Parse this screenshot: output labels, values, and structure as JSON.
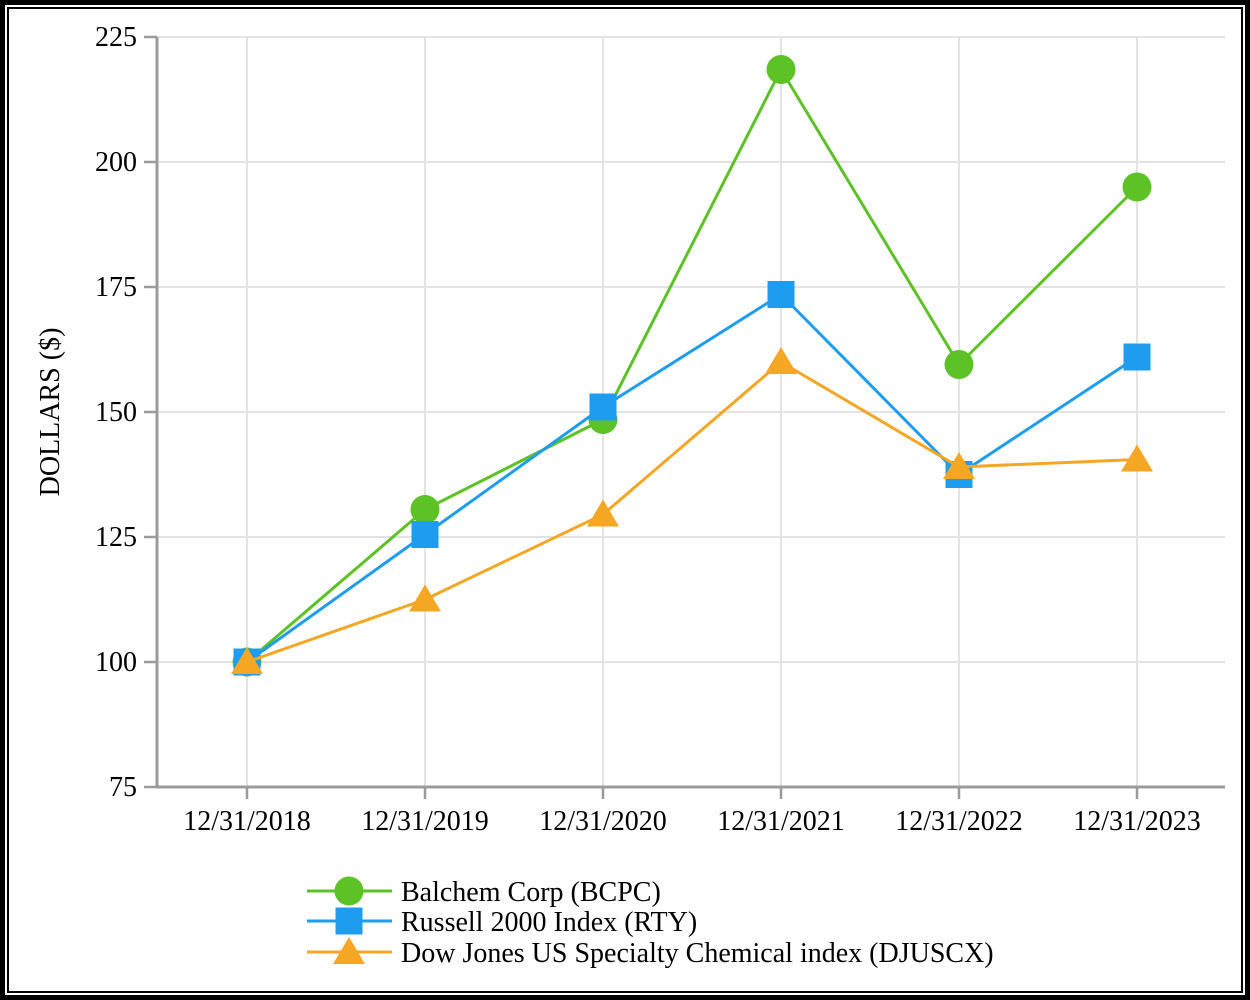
{
  "chart_data": {
    "type": "line",
    "title": "",
    "xlabel": "",
    "ylabel": "DOLLARS ($)",
    "ylim": [
      75,
      225
    ],
    "y_ticks": [
      75,
      100,
      125,
      150,
      175,
      200,
      225
    ],
    "categories": [
      "12/31/2018",
      "12/31/2019",
      "12/31/2020",
      "12/31/2021",
      "12/31/2022",
      "12/31/2023"
    ],
    "grid": "both",
    "legend_position": "bottom-left",
    "series": [
      {
        "name": "Balchem Corp (BCPC)",
        "marker": "circle",
        "color": "#5cc226",
        "values": [
          100,
          130.5,
          148.5,
          218.5,
          159.5,
          195
        ]
      },
      {
        "name": "Russell 2000 Index (RTY)",
        "marker": "square",
        "color": "#1e9cf0",
        "values": [
          100,
          125.5,
          151,
          173.5,
          137.5,
          161
        ]
      },
      {
        "name": "Dow Jones US Specialty Chemical index (DJUSCX)",
        "marker": "triangle",
        "color": "#f5a623",
        "values": [
          100,
          112.5,
          129.5,
          160,
          139,
          140.5
        ]
      }
    ],
    "colors": {
      "gridline": "#e3e3e3",
      "axis": "#9b9b9b",
      "text": "#000000",
      "background": "#ffffff",
      "frame": "#000000"
    }
  }
}
